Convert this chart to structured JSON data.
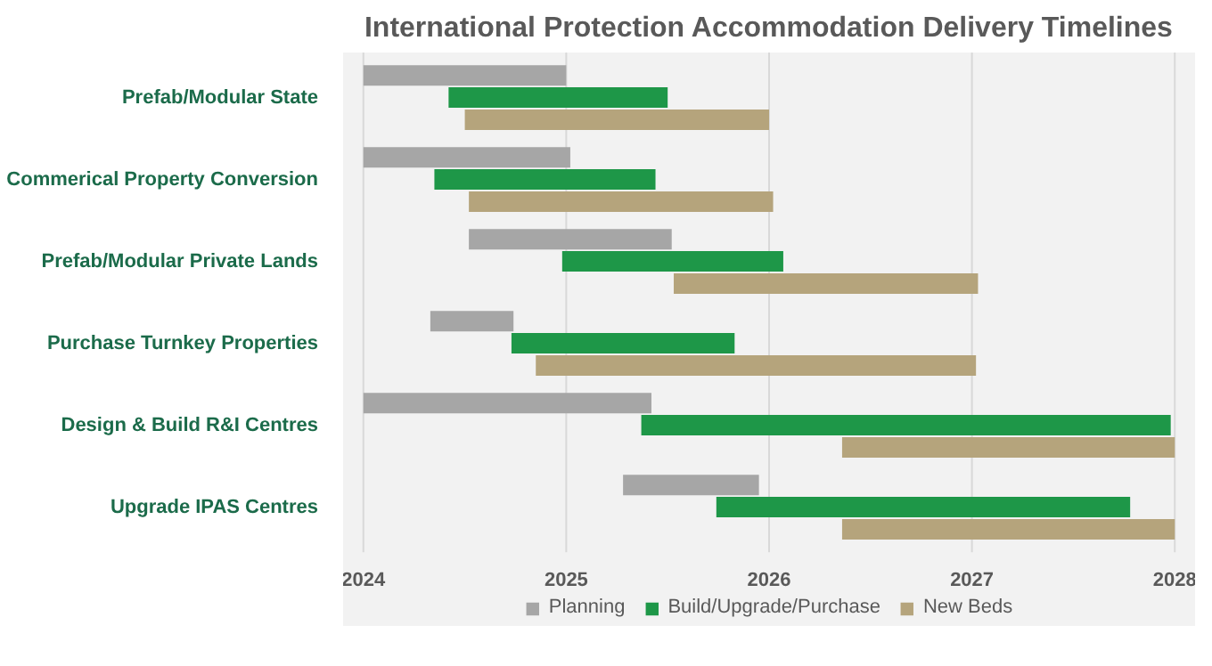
{
  "chart_data": {
    "type": "bar",
    "orientation": "horizontal",
    "title": "International Protection Accommodation Delivery Timelines",
    "categories": [
      "Prefab/Modular State",
      "Commerical Property Conversion",
      "Prefab/Modular Private Lands",
      "Purchase Turnkey Properties",
      "Design & Build R&I Centres",
      "Upgrade IPAS Centres"
    ],
    "series": [
      {
        "name": "Planning",
        "color": "#a6a6a6",
        "base": [
          2024.0,
          2024.0,
          2024.52,
          2024.33,
          2024.0,
          2025.28
        ],
        "values": [
          1.0,
          1.02,
          1.0,
          0.41,
          1.42,
          0.67
        ]
      },
      {
        "name": "Build/Upgrade/Purchase",
        "color": "#1e9748",
        "base": [
          2024.42,
          2024.35,
          2024.98,
          2024.73,
          2025.37,
          2025.74
        ],
        "values": [
          1.08,
          1.09,
          1.09,
          1.1,
          2.61,
          2.04
        ]
      },
      {
        "name": "New Beds",
        "color": "#b5a47c",
        "base": [
          2024.5,
          2024.52,
          2025.53,
          2024.85,
          2026.36,
          2026.36
        ],
        "values": [
          1.5,
          1.5,
          1.5,
          2.17,
          1.64,
          1.64
        ]
      }
    ],
    "xlim": [
      2023.9,
      2028.1
    ],
    "xticks": [
      2024,
      2025,
      2026,
      2027,
      2028
    ],
    "grid": "x",
    "legend": "bottom"
  }
}
